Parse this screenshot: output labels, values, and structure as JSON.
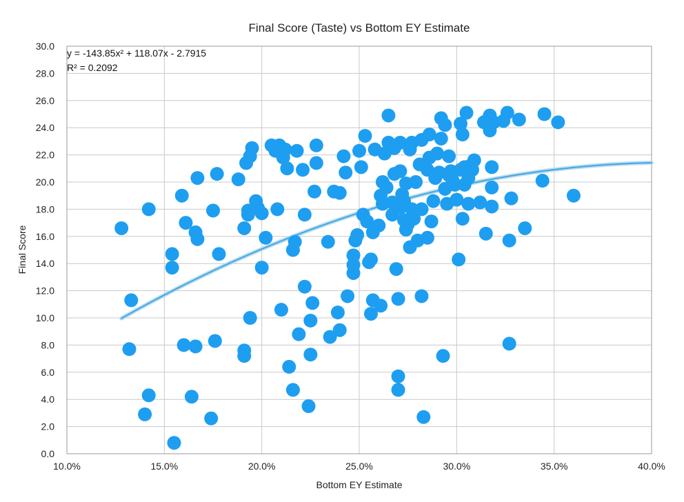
{
  "chart_data": {
    "type": "scatter",
    "title": "Final Score (Taste) vs Bottom EY Estimate",
    "xlabel": "Bottom EY Estimate",
    "ylabel": "Final Score",
    "xlim": [
      0.1,
      0.4
    ],
    "ylim": [
      0,
      30
    ],
    "x_ticks": [
      "10.0%",
      "15.0%",
      "20.0%",
      "25.0%",
      "30.0%",
      "35.0%",
      "40.0%"
    ],
    "y_ticks": [
      "0.0",
      "2.0",
      "4.0",
      "6.0",
      "8.0",
      "10.0",
      "12.0",
      "14.0",
      "16.0",
      "18.0",
      "20.0",
      "22.0",
      "24.0",
      "26.0",
      "28.0",
      "30.0"
    ],
    "grid": true,
    "marker_color": "#1e9ef0",
    "trendline_color": "#4aa8e0",
    "trendline": {
      "type": "polynomial",
      "a": -143.85,
      "b": 118.07,
      "c": -2.7915,
      "x_range": [
        0.128,
        0.4
      ],
      "equation": "y = -143.85x² + 118.07x - 2.7915",
      "r_squared": "R² = 0.2092"
    },
    "points": [
      [
        0.128,
        16.6
      ],
      [
        0.132,
        7.7
      ],
      [
        0.133,
        11.3
      ],
      [
        0.14,
        2.9
      ],
      [
        0.142,
        4.3
      ],
      [
        0.142,
        18.0
      ],
      [
        0.154,
        14.7
      ],
      [
        0.154,
        13.7
      ],
      [
        0.155,
        0.8
      ],
      [
        0.159,
        19.0
      ],
      [
        0.16,
        8.0
      ],
      [
        0.161,
        17.0
      ],
      [
        0.164,
        4.2
      ],
      [
        0.166,
        7.9
      ],
      [
        0.166,
        16.3
      ],
      [
        0.167,
        15.8
      ],
      [
        0.167,
        20.3
      ],
      [
        0.174,
        2.6
      ],
      [
        0.175,
        17.9
      ],
      [
        0.176,
        8.3
      ],
      [
        0.177,
        20.6
      ],
      [
        0.178,
        14.7
      ],
      [
        0.188,
        20.2
      ],
      [
        0.191,
        7.6
      ],
      [
        0.191,
        7.2
      ],
      [
        0.191,
        16.6
      ],
      [
        0.192,
        21.4
      ],
      [
        0.193,
        17.6
      ],
      [
        0.193,
        17.9
      ],
      [
        0.194,
        10.0
      ],
      [
        0.194,
        21.9
      ],
      [
        0.195,
        22.5
      ],
      [
        0.197,
        18.6
      ],
      [
        0.198,
        18.1
      ],
      [
        0.2,
        17.7
      ],
      [
        0.2,
        13.7
      ],
      [
        0.202,
        15.9
      ],
      [
        0.205,
        22.7
      ],
      [
        0.207,
        22.3
      ],
      [
        0.208,
        18.0
      ],
      [
        0.209,
        22.7
      ],
      [
        0.21,
        10.6
      ],
      [
        0.211,
        21.8
      ],
      [
        0.212,
        22.4
      ],
      [
        0.213,
        21.0
      ],
      [
        0.214,
        6.4
      ],
      [
        0.216,
        4.7
      ],
      [
        0.216,
        15.0
      ],
      [
        0.217,
        15.6
      ],
      [
        0.218,
        22.3
      ],
      [
        0.219,
        8.8
      ],
      [
        0.221,
        20.9
      ],
      [
        0.222,
        17.6
      ],
      [
        0.222,
        12.3
      ],
      [
        0.224,
        3.5
      ],
      [
        0.225,
        7.3
      ],
      [
        0.225,
        9.8
      ],
      [
        0.226,
        11.1
      ],
      [
        0.227,
        19.3
      ],
      [
        0.228,
        21.4
      ],
      [
        0.228,
        22.7
      ],
      [
        0.234,
        15.6
      ],
      [
        0.235,
        8.6
      ],
      [
        0.237,
        19.3
      ],
      [
        0.239,
        10.4
      ],
      [
        0.24,
        9.1
      ],
      [
        0.24,
        19.2
      ],
      [
        0.242,
        21.9
      ],
      [
        0.243,
        20.7
      ],
      [
        0.244,
        11.6
      ],
      [
        0.247,
        13.3
      ],
      [
        0.247,
        14.6
      ],
      [
        0.247,
        13.9
      ],
      [
        0.248,
        15.7
      ],
      [
        0.249,
        16.1
      ],
      [
        0.25,
        22.3
      ],
      [
        0.251,
        21.1
      ],
      [
        0.252,
        17.6
      ],
      [
        0.253,
        23.4
      ],
      [
        0.254,
        17.1
      ],
      [
        0.255,
        14.1
      ],
      [
        0.256,
        10.3
      ],
      [
        0.256,
        14.3
      ],
      [
        0.257,
        11.3
      ],
      [
        0.257,
        16.3
      ],
      [
        0.258,
        22.4
      ],
      [
        0.26,
        16.8
      ],
      [
        0.261,
        19.0
      ],
      [
        0.261,
        10.9
      ],
      [
        0.262,
        18.4
      ],
      [
        0.262,
        20.0
      ],
      [
        0.263,
        22.1
      ],
      [
        0.264,
        19.6
      ],
      [
        0.265,
        24.9
      ],
      [
        0.265,
        22.9
      ],
      [
        0.267,
        17.6
      ],
      [
        0.267,
        18.5
      ],
      [
        0.268,
        20.6
      ],
      [
        0.268,
        22.5
      ],
      [
        0.269,
        13.6
      ],
      [
        0.27,
        11.4
      ],
      [
        0.27,
        4.7
      ],
      [
        0.27,
        5.7
      ],
      [
        0.271,
        18.1
      ],
      [
        0.271,
        20.8
      ],
      [
        0.271,
        22.9
      ],
      [
        0.272,
        19.1
      ],
      [
        0.273,
        17.2
      ],
      [
        0.273,
        18.6
      ],
      [
        0.274,
        16.5
      ],
      [
        0.274,
        19.9
      ],
      [
        0.275,
        16.9
      ],
      [
        0.276,
        15.2
      ],
      [
        0.276,
        22.4
      ],
      [
        0.277,
        22.9
      ],
      [
        0.277,
        18.0
      ],
      [
        0.278,
        17.3
      ],
      [
        0.279,
        20.0
      ],
      [
        0.28,
        15.7
      ],
      [
        0.281,
        21.3
      ],
      [
        0.282,
        11.6
      ],
      [
        0.282,
        23.1
      ],
      [
        0.282,
        18.0
      ],
      [
        0.283,
        2.7
      ],
      [
        0.285,
        15.9
      ],
      [
        0.285,
        20.9
      ],
      [
        0.286,
        23.5
      ],
      [
        0.286,
        21.8
      ],
      [
        0.287,
        17.1
      ],
      [
        0.288,
        18.6
      ],
      [
        0.289,
        20.3
      ],
      [
        0.29,
        22.1
      ],
      [
        0.291,
        20.7
      ],
      [
        0.292,
        23.2
      ],
      [
        0.292,
        24.7
      ],
      [
        0.293,
        7.2
      ],
      [
        0.294,
        24.2
      ],
      [
        0.294,
        19.5
      ],
      [
        0.295,
        18.4
      ],
      [
        0.296,
        20.5
      ],
      [
        0.296,
        21.9
      ],
      [
        0.297,
        20.8
      ],
      [
        0.298,
        20.1
      ],
      [
        0.299,
        19.8
      ],
      [
        0.3,
        18.7
      ],
      [
        0.301,
        14.3
      ],
      [
        0.302,
        24.3
      ],
      [
        0.302,
        20.9
      ],
      [
        0.303,
        23.5
      ],
      [
        0.303,
        17.3
      ],
      [
        0.304,
        19.8
      ],
      [
        0.304,
        21.1
      ],
      [
        0.305,
        25.1
      ],
      [
        0.306,
        18.4
      ],
      [
        0.306,
        20.3
      ],
      [
        0.307,
        21.2
      ],
      [
        0.308,
        20.9
      ],
      [
        0.309,
        21.6
      ],
      [
        0.312,
        18.5
      ],
      [
        0.314,
        24.4
      ],
      [
        0.315,
        16.2
      ],
      [
        0.316,
        24.6
      ],
      [
        0.317,
        23.8
      ],
      [
        0.317,
        24.9
      ],
      [
        0.318,
        19.6
      ],
      [
        0.318,
        18.2
      ],
      [
        0.318,
        21.1
      ],
      [
        0.319,
        24.4
      ],
      [
        0.324,
        24.5
      ],
      [
        0.326,
        25.1
      ],
      [
        0.327,
        8.1
      ],
      [
        0.327,
        15.7
      ],
      [
        0.328,
        18.8
      ],
      [
        0.332,
        24.6
      ],
      [
        0.335,
        16.6
      ],
      [
        0.344,
        20.1
      ],
      [
        0.345,
        25.0
      ],
      [
        0.352,
        24.4
      ],
      [
        0.36,
        19.0
      ]
    ]
  }
}
